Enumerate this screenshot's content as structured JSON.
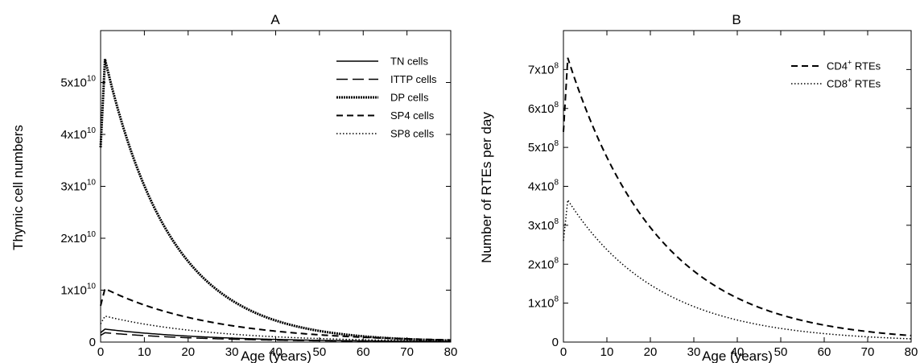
{
  "chart_data": [
    {
      "type": "line",
      "panel": "A",
      "title": "A",
      "xlabel": "Age (years)",
      "ylabel": "Thymic cell numbers",
      "xlim": [
        0,
        80
      ],
      "ylim": [
        0,
        60000000000
      ],
      "x_ticks": [
        0,
        10,
        20,
        30,
        40,
        50,
        60,
        70,
        80
      ],
      "y_ticks": [
        {
          "value": 0,
          "mantissa": "0",
          "exponent": ""
        },
        {
          "value": 10000000000,
          "mantissa": "1x10",
          "exponent": "10"
        },
        {
          "value": 20000000000,
          "mantissa": "2x10",
          "exponent": "10"
        },
        {
          "value": 30000000000,
          "mantissa": "3x10",
          "exponent": "10"
        },
        {
          "value": 40000000000,
          "mantissa": "4x10",
          "exponent": "10"
        },
        {
          "value": 50000000000,
          "mantissa": "5x10",
          "exponent": "10"
        }
      ],
      "grid": false,
      "legend_position": "top-right",
      "series": [
        {
          "name": "TN cells",
          "style": "solid",
          "peak_x": 1,
          "peak": 2500000000,
          "start": 1800000000,
          "half_life": 17
        },
        {
          "name": "ITTP cells",
          "style": "long-dash",
          "peak_x": 1,
          "peak": 1800000000,
          "start": 1300000000,
          "half_life": 17
        },
        {
          "name": "DP cells",
          "style": "dense-dot",
          "peak_x": 1,
          "peak": 54500000000,
          "start": 37500000000,
          "half_life": 10.5
        },
        {
          "name": "SP4 cells",
          "style": "dash",
          "peak_x": 1,
          "peak": 10300000000,
          "start": 7000000000,
          "half_life": 17
        },
        {
          "name": "SP8 cells",
          "style": "dot",
          "peak_x": 1,
          "peak": 5000000000,
          "start": 3500000000,
          "half_life": 17
        }
      ]
    },
    {
      "type": "line",
      "panel": "B",
      "title": "B",
      "xlabel": "Age (years)",
      "ylabel": "Number of RTEs per day",
      "xlim": [
        0,
        80
      ],
      "ylim": [
        0,
        800000000
      ],
      "x_ticks": [
        0,
        10,
        20,
        30,
        40,
        50,
        60,
        70,
        80
      ],
      "y_ticks": [
        {
          "value": 0,
          "mantissa": "0",
          "exponent": ""
        },
        {
          "value": 100000000,
          "mantissa": "1x10",
          "exponent": "8"
        },
        {
          "value": 200000000,
          "mantissa": "2x10",
          "exponent": "8"
        },
        {
          "value": 300000000,
          "mantissa": "3x10",
          "exponent": "8"
        },
        {
          "value": 400000000,
          "mantissa": "4x10",
          "exponent": "8"
        },
        {
          "value": 500000000,
          "mantissa": "5x10",
          "exponent": "8"
        },
        {
          "value": 600000000,
          "mantissa": "6x10",
          "exponent": "8"
        },
        {
          "value": 700000000,
          "mantissa": "7x10",
          "exponent": "8"
        }
      ],
      "grid": false,
      "legend_position": "top-right",
      "series": [
        {
          "name": "CD4",
          "name_sup": "+",
          "name_suffix": " RTEs",
          "style": "dash",
          "peak_x": 1,
          "peak": 730000000,
          "start": 540000000,
          "half_life": 14.5
        },
        {
          "name": "CD8",
          "name_sup": "+",
          "name_suffix": " RTEs",
          "style": "dot",
          "peak_x": 1,
          "peak": 365000000,
          "start": 260000000,
          "half_life": 14.5
        }
      ]
    }
  ]
}
